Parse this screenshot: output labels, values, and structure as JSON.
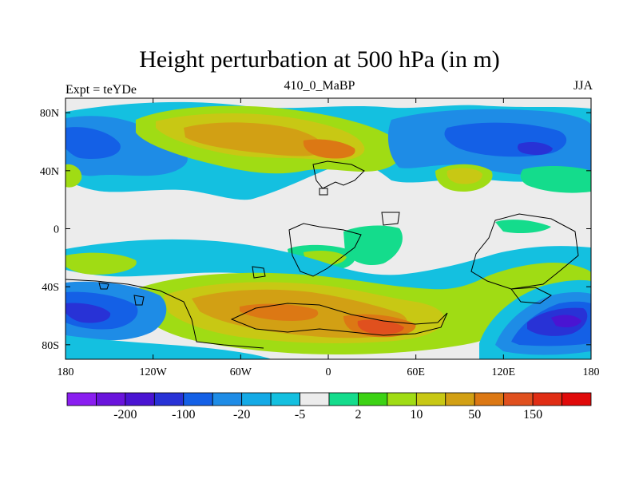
{
  "header": {
    "title": "Height perturbation at 500 hPa (in m)",
    "left_label": "Expt = teYDe",
    "center_label": "410_0_MaBP",
    "right_label": "JJA"
  },
  "map": {
    "x_ticks": [
      "180",
      "120W",
      "60W",
      "0",
      "60E",
      "120E",
      "180"
    ],
    "y_ticks": [
      "80N",
      "40N",
      "0",
      "40S",
      "80S"
    ]
  },
  "colorbar": {
    "colors": [
      "#8a1ef0",
      "#6a14dc",
      "#4a14d2",
      "#2832d6",
      "#1460e6",
      "#1e8ce6",
      "#14aae6",
      "#14c0e0",
      "#ececec",
      "#14dc8c",
      "#3cd214",
      "#a0dc14",
      "#c8c814",
      "#d2a014",
      "#dc7814",
      "#e0501e",
      "#e02d14",
      "#e00a0a"
    ],
    "labels": [
      "-200",
      "-100",
      "-20",
      "-5",
      "2",
      "10",
      "50",
      "150"
    ]
  }
}
